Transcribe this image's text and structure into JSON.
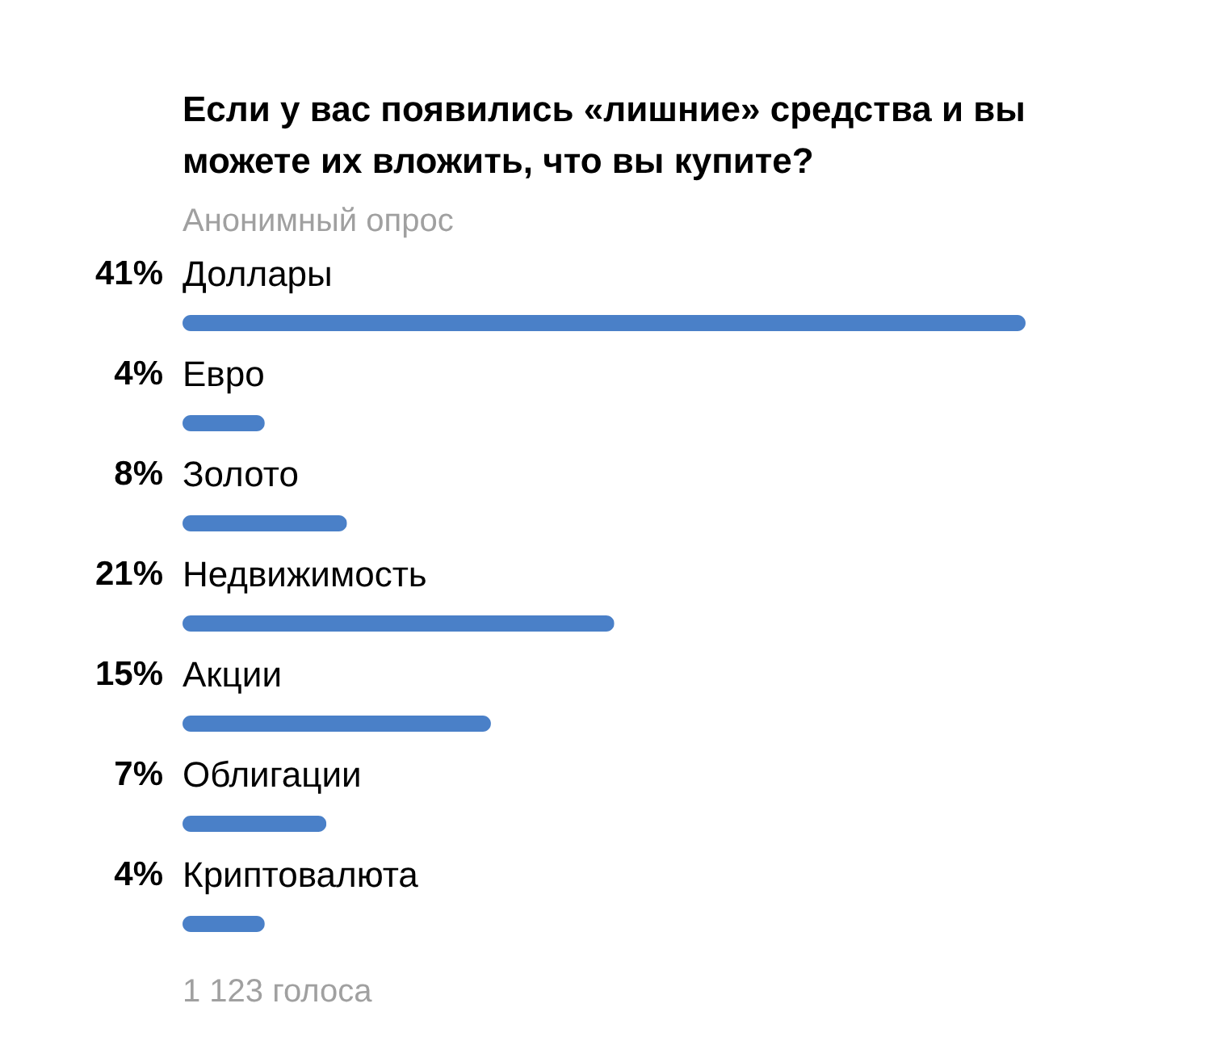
{
  "chart_data": {
    "type": "bar",
    "orientation": "horizontal",
    "title": "Если у вас появились «лишние» средства и вы можете их вложить, что вы купите?",
    "subtitle": "Анонимный опрос",
    "categories": [
      "Доллары",
      "Евро",
      "Золото",
      "Недвижимость",
      "Акции",
      "Облигации",
      "Криптовалюта"
    ],
    "values": [
      41,
      4,
      8,
      21,
      15,
      7,
      4
    ],
    "value_labels": [
      "41%",
      "4%",
      "8%",
      "21%",
      "15%",
      "7%",
      "4%"
    ],
    "color": "#4a80c8",
    "annotations": [
      "1 123 голоса"
    ]
  }
}
